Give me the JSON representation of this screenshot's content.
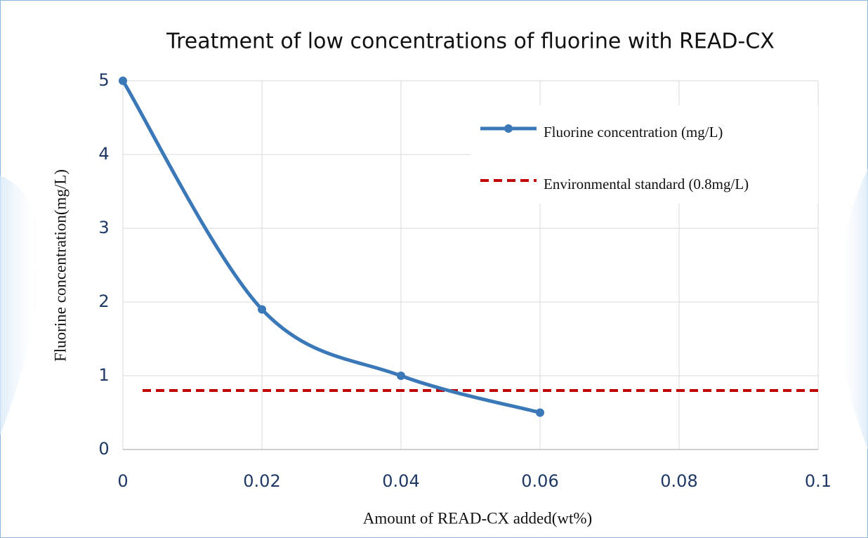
{
  "chart_data": {
    "type": "line",
    "title": "Treatment of low concentrations of fluorine with READ-CX",
    "x_label": "Amount of READ-CX added(wt%)",
    "y_label": "Fluorine concentration(mg/L)",
    "x": [
      0,
      0.02,
      0.04,
      0.06
    ],
    "series": [
      {
        "name": "Fluorine concentration (mg/L)",
        "color": "#3a78b8",
        "values": [
          5,
          1.9,
          1,
          0.5
        ],
        "smooth": true,
        "markers": true
      }
    ],
    "reference_lines": [
      {
        "name": "Environmental standard (0.8mg/L)",
        "color": "#c00000",
        "value": 0.8,
        "style": "dashed"
      }
    ],
    "xlim": [
      0,
      0.1
    ],
    "xticks": [
      0,
      0.02,
      0.04,
      0.06,
      0.08,
      0.1
    ],
    "ylim": [
      0,
      5
    ],
    "yticks": [
      0,
      1,
      2,
      3,
      4,
      5
    ],
    "grid": true,
    "legend": "upper right"
  }
}
